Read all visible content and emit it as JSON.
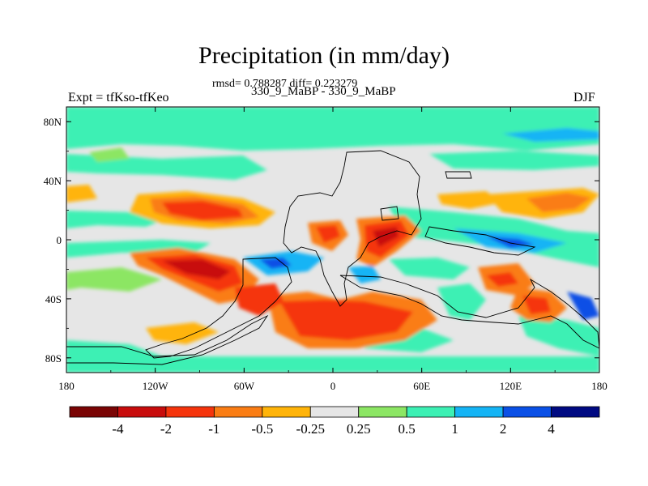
{
  "title": "Precipitation (in mm/day)",
  "subtitle": "rmsd= 0.788287 diff= 0.223279",
  "left_label": "Expt = tfKso-tfKeo",
  "center_label": "330_9_MaBP - 330_9_MaBP",
  "right_label": "DJF",
  "map": {
    "projection": "cylindrical equidistant",
    "lon_range": [
      -180,
      180
    ],
    "lat_range": [
      -90,
      90
    ],
    "x_ticks": [
      "180",
      "120W",
      "60W",
      "0",
      "60E",
      "120E",
      "180"
    ],
    "y_ticks": [
      "80N",
      "40N",
      "0",
      "40S",
      "80S"
    ]
  },
  "colorbar": {
    "levels": [
      "-4",
      "-2",
      "-1",
      "-0.5",
      "-0.25",
      "0.25",
      "0.5",
      "1",
      "2",
      "4"
    ],
    "colors": [
      "#7a0404",
      "#c80c0c",
      "#f5340c",
      "#fa7d14",
      "#ffb40a",
      "#e6e6e6",
      "#8ce664",
      "#3cf0b4",
      "#14b4f5",
      "#0a50e6",
      "#000a82"
    ]
  }
}
